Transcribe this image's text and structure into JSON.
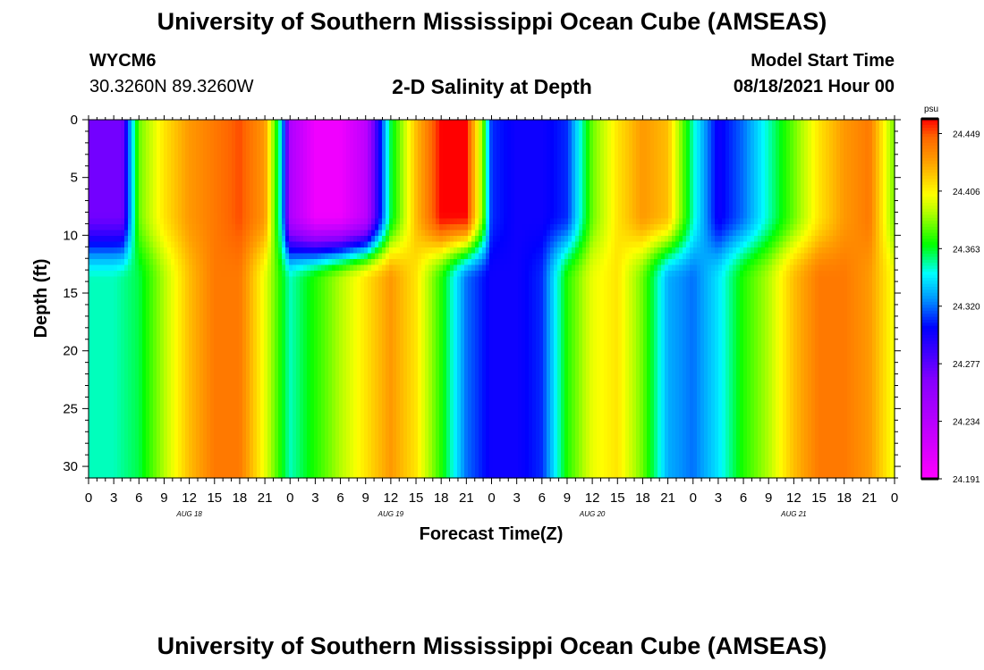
{
  "header": {
    "title": "University of Southern Mississippi Ocean Cube (AMSEAS)",
    "station": "WYCM6",
    "coords": "30.3260N  89.3260W",
    "plot_title": "2-D Salinity at Depth",
    "start_label": "Model Start Time",
    "start_value": "08/18/2021 Hour 00"
  },
  "footer": {
    "title": "University of Southern Mississippi Ocean Cube (AMSEAS)"
  },
  "chart_data": {
    "type": "heatmap",
    "xlabel": "Forecast Time(Z)",
    "ylabel": "Depth (ft)",
    "xlim_hours": [
      0,
      96
    ],
    "ylim": [
      31,
      0
    ],
    "x_tick_labels": [
      "0",
      "3",
      "6",
      "9",
      "12",
      "15",
      "18",
      "21",
      "0",
      "3",
      "6",
      "9",
      "12",
      "15",
      "18",
      "21",
      "0",
      "3",
      "6",
      "9",
      "12",
      "15",
      "18",
      "21",
      "0",
      "3",
      "6",
      "9",
      "12",
      "15",
      "18",
      "21",
      "0"
    ],
    "day_labels": [
      "AUG 18",
      "AUG 19",
      "AUG 20",
      "AUG 21"
    ],
    "y_ticks": [
      0,
      5,
      10,
      15,
      20,
      25,
      30
    ],
    "colorbar": {
      "unit": "psu",
      "min": 24.191,
      "max": 24.46,
      "tick_labels": [
        "24.449",
        "24.406",
        "24.363",
        "24.320",
        "24.277",
        "24.234",
        "24.191"
      ]
    },
    "surface_profile_hours": [
      0,
      4,
      5,
      6,
      9,
      12,
      15,
      18,
      21,
      23,
      24,
      27,
      30,
      33,
      36,
      39,
      42,
      45,
      47,
      48,
      51,
      54,
      57,
      60,
      63,
      66,
      69,
      72,
      75,
      78,
      81,
      84,
      87,
      90,
      93,
      95,
      96
    ],
    "surface_profile_values": [
      24.27,
      24.27,
      24.33,
      24.38,
      24.41,
      24.43,
      24.44,
      24.45,
      24.43,
      24.34,
      24.24,
      24.2,
      24.2,
      24.23,
      24.36,
      24.42,
      24.46,
      24.46,
      24.38,
      24.31,
      24.3,
      24.3,
      24.31,
      24.38,
      24.41,
      24.43,
      24.42,
      24.35,
      24.3,
      24.32,
      24.35,
      24.38,
      24.41,
      24.43,
      24.44,
      24.4,
      24.38
    ],
    "deep_profile_hours": [
      0,
      3,
      6,
      9,
      12,
      15,
      18,
      21,
      24,
      27,
      30,
      33,
      36,
      39,
      42,
      45,
      48,
      51,
      54,
      57,
      60,
      63,
      66,
      69,
      72,
      75,
      78,
      81,
      84,
      87,
      90,
      93,
      96
    ],
    "deep_profile_values": [
      24.35,
      24.35,
      24.36,
      24.39,
      24.42,
      24.44,
      24.44,
      24.4,
      24.35,
      24.37,
      24.39,
      24.41,
      24.43,
      24.41,
      24.37,
      24.32,
      24.3,
      24.3,
      24.31,
      24.37,
      24.4,
      24.41,
      24.38,
      24.33,
      24.32,
      24.34,
      24.37,
      24.39,
      24.42,
      24.44,
      24.44,
      24.43,
      24.4
    ]
  }
}
